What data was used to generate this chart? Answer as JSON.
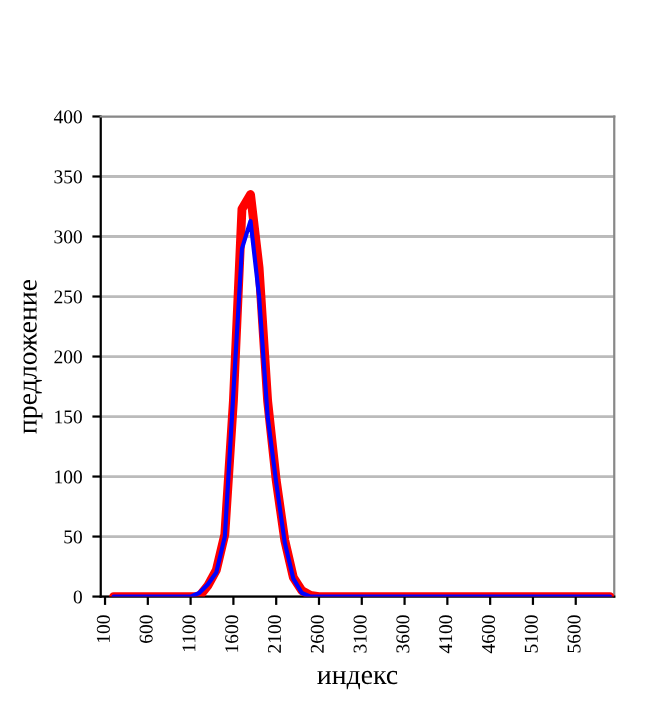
{
  "chart_data": {
    "type": "line",
    "xlabel": "индекс",
    "ylabel": "предложение",
    "xlim": [
      50,
      6050
    ],
    "xticks": [
      100,
      600,
      1100,
      1600,
      2100,
      2600,
      3100,
      3600,
      4100,
      4600,
      5100,
      5600
    ],
    "ylim": [
      0,
      400
    ],
    "yticks": [
      0,
      50,
      100,
      150,
      200,
      250,
      300,
      350,
      400
    ],
    "grid": "y",
    "legend": false,
    "marker": "none",
    "line_style": "solid",
    "series": [
      {
        "color": "#0000ff",
        "x": [
          200,
          1100,
          1200,
          1300,
          1400,
          1500,
          1600,
          1700,
          1800,
          1900,
          2000,
          2100,
          2200,
          2300,
          2400,
          2500,
          6000
        ],
        "values": [
          0,
          0,
          3,
          10,
          20,
          50,
          170,
          290,
          313,
          250,
          150,
          95,
          45,
          15,
          3,
          0,
          0
        ]
      },
      {
        "color": "#ff0000",
        "x": [
          200,
          1100,
          1200,
          1300,
          1400,
          1500,
          1600,
          1700,
          1800,
          1900,
          2000,
          2100,
          2200,
          2300,
          2400,
          2500,
          2600,
          6000
        ],
        "values": [
          0,
          0,
          0,
          9,
          22,
          52,
          163,
          323,
          335,
          274,
          163,
          97,
          47,
          16,
          5,
          1,
          0,
          0
        ]
      }
    ]
  }
}
